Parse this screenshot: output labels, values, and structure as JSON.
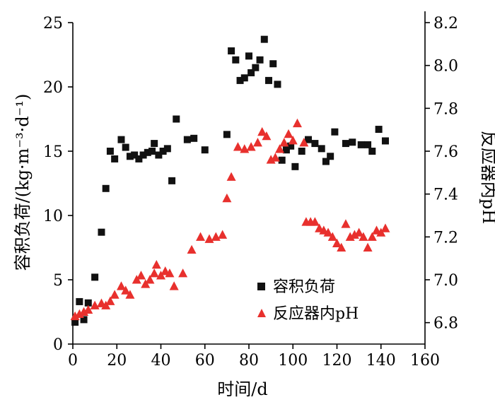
{
  "chart_data": {
    "type": "scatter",
    "xlabel": "时间/d",
    "ylabel_left": "容积负荷/(kg·m⁻³·d⁻¹)",
    "ylabel_right": "反应器内pH",
    "xlim": [
      0,
      160
    ],
    "xticks": [
      "0",
      "20",
      "40",
      "60",
      "80",
      "100",
      "120",
      "140",
      "160"
    ],
    "ylim_left": [
      0,
      25
    ],
    "yticks_left": [
      "0",
      "5",
      "10",
      "15",
      "20",
      "25"
    ],
    "ylim_right": [
      6.7,
      8.2
    ],
    "yticks_right": [
      "6.8",
      "7.0",
      "7.2",
      "7.4",
      "7.6",
      "7.8",
      "8.0",
      "8.2"
    ],
    "legend_position": "lower-right",
    "grid": false,
    "series": [
      {
        "name": "容积负荷",
        "axis": "left",
        "marker": "square",
        "color": "#111111",
        "points": [
          [
            1,
            1.7
          ],
          [
            3,
            3.3
          ],
          [
            5,
            1.9
          ],
          [
            7,
            3.2
          ],
          [
            10,
            5.2
          ],
          [
            13,
            8.7
          ],
          [
            15,
            12.1
          ],
          [
            17,
            15.0
          ],
          [
            19,
            14.4
          ],
          [
            22,
            15.9
          ],
          [
            24,
            15.3
          ],
          [
            26,
            14.6
          ],
          [
            28,
            14.7
          ],
          [
            30,
            14.4
          ],
          [
            32,
            14.7
          ],
          [
            34,
            14.9
          ],
          [
            36,
            15.0
          ],
          [
            37,
            15.6
          ],
          [
            39,
            14.7
          ],
          [
            41,
            15.0
          ],
          [
            43,
            15.2
          ],
          [
            45,
            12.7
          ],
          [
            47,
            17.5
          ],
          [
            52,
            15.9
          ],
          [
            55,
            16.0
          ],
          [
            60,
            15.1
          ],
          [
            70,
            16.3
          ],
          [
            72,
            22.8
          ],
          [
            74,
            22.1
          ],
          [
            76,
            20.5
          ],
          [
            78,
            20.7
          ],
          [
            80,
            22.4
          ],
          [
            81,
            21.1
          ],
          [
            83,
            21.5
          ],
          [
            85,
            22.1
          ],
          [
            87,
            23.7
          ],
          [
            89,
            20.5
          ],
          [
            91,
            21.8
          ],
          [
            93,
            20.2
          ],
          [
            95,
            14.3
          ],
          [
            97,
            15.1
          ],
          [
            99,
            15.4
          ],
          [
            101,
            13.8
          ],
          [
            104,
            15.0
          ],
          [
            107,
            15.9
          ],
          [
            110,
            15.6
          ],
          [
            113,
            15.2
          ],
          [
            115,
            14.2
          ],
          [
            117,
            14.6
          ],
          [
            119,
            16.5
          ],
          [
            124,
            15.6
          ],
          [
            127,
            15.7
          ],
          [
            131,
            15.5
          ],
          [
            134,
            15.5
          ],
          [
            136,
            15.0
          ],
          [
            139,
            16.7
          ],
          [
            142,
            15.8
          ]
        ]
      },
      {
        "name": "反应器内pH",
        "axis": "right",
        "marker": "triangle",
        "color": "#e8302d",
        "points": [
          [
            1,
            6.83
          ],
          [
            3,
            6.84
          ],
          [
            5,
            6.85
          ],
          [
            7,
            6.86
          ],
          [
            10,
            6.88
          ],
          [
            13,
            6.89
          ],
          [
            15,
            6.88
          ],
          [
            17,
            6.9
          ],
          [
            19,
            6.93
          ],
          [
            22,
            6.97
          ],
          [
            24,
            6.95
          ],
          [
            26,
            6.93
          ],
          [
            29,
            7.0
          ],
          [
            31,
            7.02
          ],
          [
            33,
            6.98
          ],
          [
            35,
            7.0
          ],
          [
            37,
            7.03
          ],
          [
            38,
            7.07
          ],
          [
            40,
            7.02
          ],
          [
            42,
            7.04
          ],
          [
            44,
            7.03
          ],
          [
            46,
            6.97
          ],
          [
            50,
            7.03
          ],
          [
            54,
            7.14
          ],
          [
            58,
            7.2
          ],
          [
            62,
            7.19
          ],
          [
            65,
            7.2
          ],
          [
            68,
            7.21
          ],
          [
            70,
            7.38
          ],
          [
            72,
            7.48
          ],
          [
            75,
            7.62
          ],
          [
            78,
            7.61
          ],
          [
            81,
            7.62
          ],
          [
            84,
            7.64
          ],
          [
            86,
            7.69
          ],
          [
            88,
            7.67
          ],
          [
            90,
            7.56
          ],
          [
            92,
            7.57
          ],
          [
            94,
            7.61
          ],
          [
            96,
            7.64
          ],
          [
            98,
            7.68
          ],
          [
            100,
            7.65
          ],
          [
            102,
            7.73
          ],
          [
            105,
            7.64
          ],
          [
            106,
            7.27
          ],
          [
            108,
            7.27
          ],
          [
            110,
            7.27
          ],
          [
            112,
            7.24
          ],
          [
            114,
            7.23
          ],
          [
            116,
            7.22
          ],
          [
            118,
            7.2
          ],
          [
            120,
            7.17
          ],
          [
            122,
            7.15
          ],
          [
            124,
            7.26
          ],
          [
            126,
            7.2
          ],
          [
            128,
            7.21
          ],
          [
            130,
            7.22
          ],
          [
            132,
            7.2
          ],
          [
            134,
            7.15
          ],
          [
            136,
            7.2
          ],
          [
            138,
            7.23
          ],
          [
            140,
            7.22
          ],
          [
            142,
            7.24
          ]
        ]
      }
    ]
  }
}
